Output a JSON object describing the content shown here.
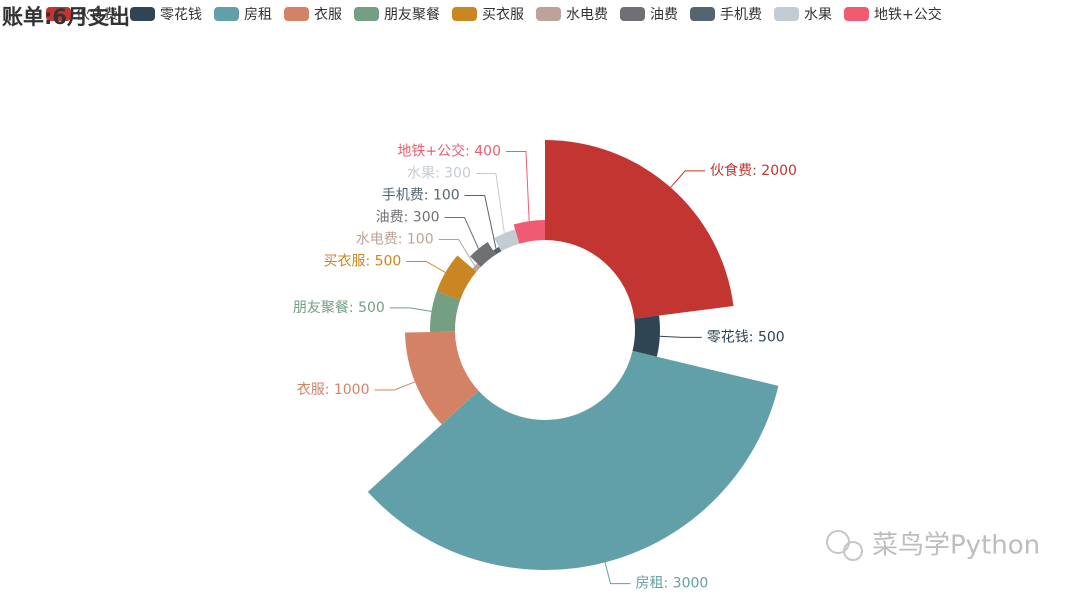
{
  "chart_data": {
    "type": "rose",
    "title": "账单:6月支出",
    "watermark": "菜鸟学Python",
    "categories": [
      "伙食费",
      "零花钱",
      "房租",
      "衣服",
      "朋友聚餐",
      "买衣服",
      "水电费",
      "油费",
      "手机费",
      "水果",
      "地铁+公交"
    ],
    "values": [
      2000,
      500,
      3000,
      1000,
      500,
      500,
      100,
      300,
      100,
      300,
      400
    ],
    "colors": [
      "#c23531",
      "#2f4554",
      "#61a0a8",
      "#d48265",
      "#749f83",
      "#ca8622",
      "#bda29a",
      "#6e7074",
      "#546570",
      "#c4ccd3",
      "#f05b72"
    ],
    "value_labels": [
      "伙食费: 2000",
      "零花钱: 500",
      "房租: 3000",
      "衣服: 1000",
      "朋友聚餐: 500",
      "买衣服: 500",
      "水电费: 100",
      "油费: 300",
      "手机费: 100",
      "水果: 300",
      "地铁+公交: 400"
    ]
  }
}
